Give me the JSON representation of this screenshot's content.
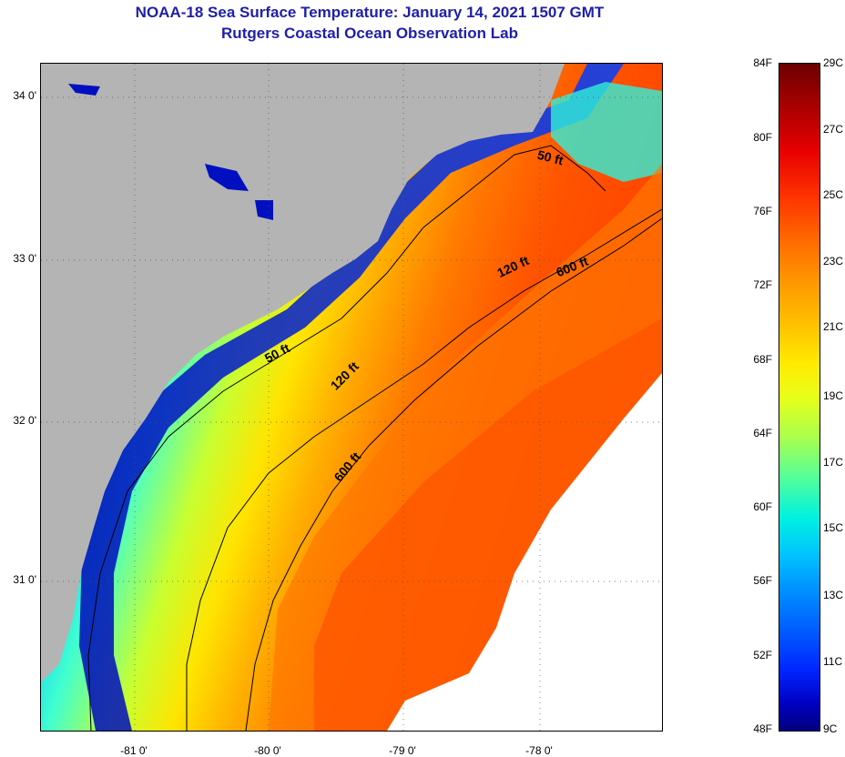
{
  "header": {
    "title": "NOAA-18 Sea Surface Temperature:  January 14, 2021 1507 GMT",
    "subtitle": "Rutgers Coastal Ocean Observation Lab"
  },
  "map": {
    "lat_labels": [
      "34 0'",
      "33 0'",
      "32 0'",
      "31 0'"
    ],
    "lon_labels": [
      "-81 0'",
      "-80 0'",
      "-79 0'",
      "-78 0'"
    ],
    "contours": [
      {
        "label": "50 ft"
      },
      {
        "label": "50 ft"
      },
      {
        "label": "120 ft"
      },
      {
        "label": "120 ft"
      },
      {
        "label": "600 ft"
      },
      {
        "label": "600 ft"
      }
    ],
    "colors": {
      "land": "#b4b4b4",
      "no_data": "#ffffff"
    }
  },
  "colorbar": {
    "fahrenheit": [
      "84F",
      "80F",
      "76F",
      "72F",
      "68F",
      "64F",
      "60F",
      "56F",
      "52F",
      "48F"
    ],
    "celsius": [
      "29C",
      "27C",
      "25C",
      "23C",
      "21C",
      "19C",
      "17C",
      "15C",
      "13C",
      "11C",
      "9C"
    ]
  }
}
